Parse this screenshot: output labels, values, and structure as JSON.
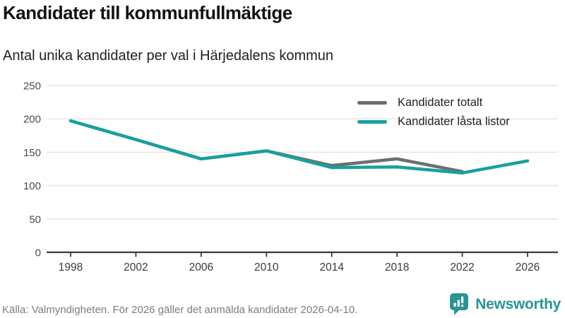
{
  "header": {
    "title": "Kandidater till kommunfullmäktige",
    "subtitle": "Antal unika kandidater per val i Härjedalens kommun"
  },
  "chart_data": {
    "type": "line",
    "x": [
      1998,
      2002,
      2006,
      2010,
      2014,
      2018,
      2022,
      2026
    ],
    "series": [
      {
        "name": "Kandidater totalt",
        "color": "#6d6d72",
        "values": [
          197,
          169,
          140,
          152,
          130,
          140,
          121,
          null
        ]
      },
      {
        "name": "Kandidater låsta listor",
        "color": "#18a09e",
        "values": [
          197,
          169,
          140,
          152,
          127,
          128,
          119,
          137
        ]
      }
    ],
    "title": "Kandidater till kommunfullmäktige",
    "xlabel": "",
    "ylabel": "",
    "ylim": [
      0,
      250
    ],
    "yticks": [
      0,
      50,
      100,
      150,
      200,
      250
    ],
    "xticks": [
      1998,
      2002,
      2006,
      2010,
      2014,
      2018,
      2022,
      2026
    ],
    "grid": true,
    "legend_position": "top-right"
  },
  "footer": {
    "source": "Källa: Valmyndigheten. För 2026 gäller det anmälda kandidater 2026-04-10.",
    "brand": "Newsworthy"
  },
  "icons": {
    "brand_logo": "newsworthy-speech-bubble-barchart-icon"
  },
  "colors": {
    "accent_teal": "#18a09e",
    "line_gray": "#6d6d72",
    "brand_teal": "#2b9494",
    "grid": "#e2e2e2",
    "axis": "#3a3a3a",
    "tick_label": "#4a4a4a"
  }
}
